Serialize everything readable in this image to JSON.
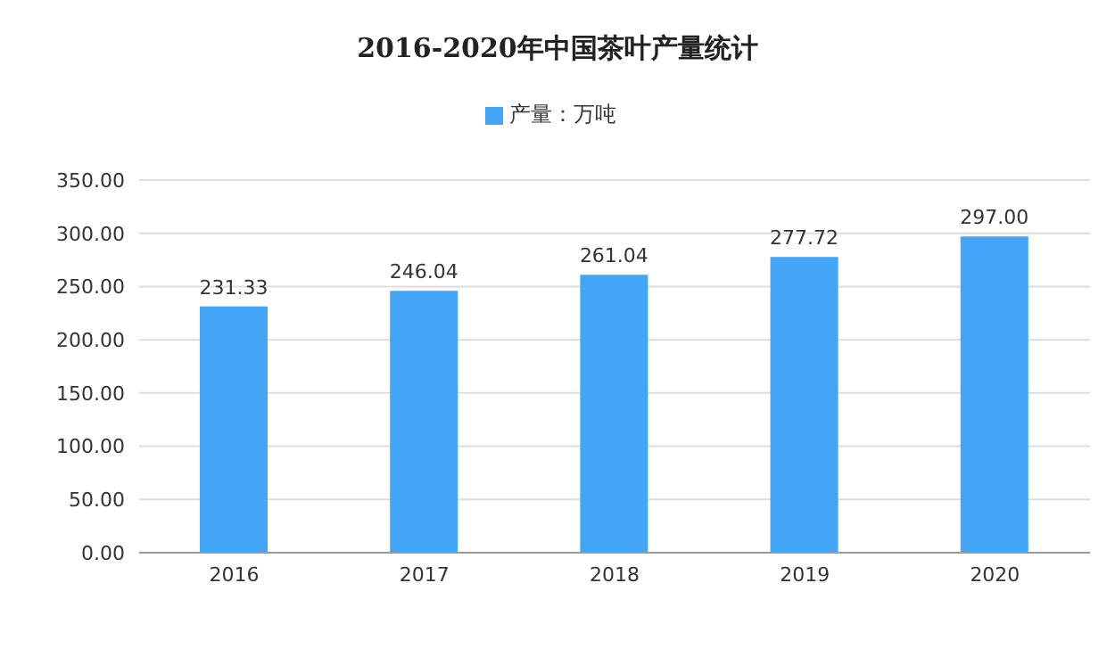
{
  "chart_data": {
    "type": "bar",
    "title": "2016-2020年中国茶叶产量统计",
    "categories": [
      "2016",
      "2017",
      "2018",
      "2019",
      "2020"
    ],
    "series": [
      {
        "name": "产量：万吨",
        "color": "#42a5f5",
        "values": [
          231.33,
          246.04,
          261.04,
          277.72,
          297.0
        ],
        "value_labels": [
          "231.33",
          "246.04",
          "261.04",
          "277.72",
          "297.00"
        ]
      }
    ],
    "ylim": [
      0,
      350
    ],
    "yticks": [
      {
        "value": 0,
        "label": "0.00"
      },
      {
        "value": 50,
        "label": "50.00"
      },
      {
        "value": 100,
        "label": "100.00"
      },
      {
        "value": 150,
        "label": "150.00"
      },
      {
        "value": 200,
        "label": "200.00"
      },
      {
        "value": 250,
        "label": "250.00"
      },
      {
        "value": 300,
        "label": "300.00"
      },
      {
        "value": 350,
        "label": "350.00"
      }
    ],
    "grid": "y",
    "legend": "top"
  }
}
